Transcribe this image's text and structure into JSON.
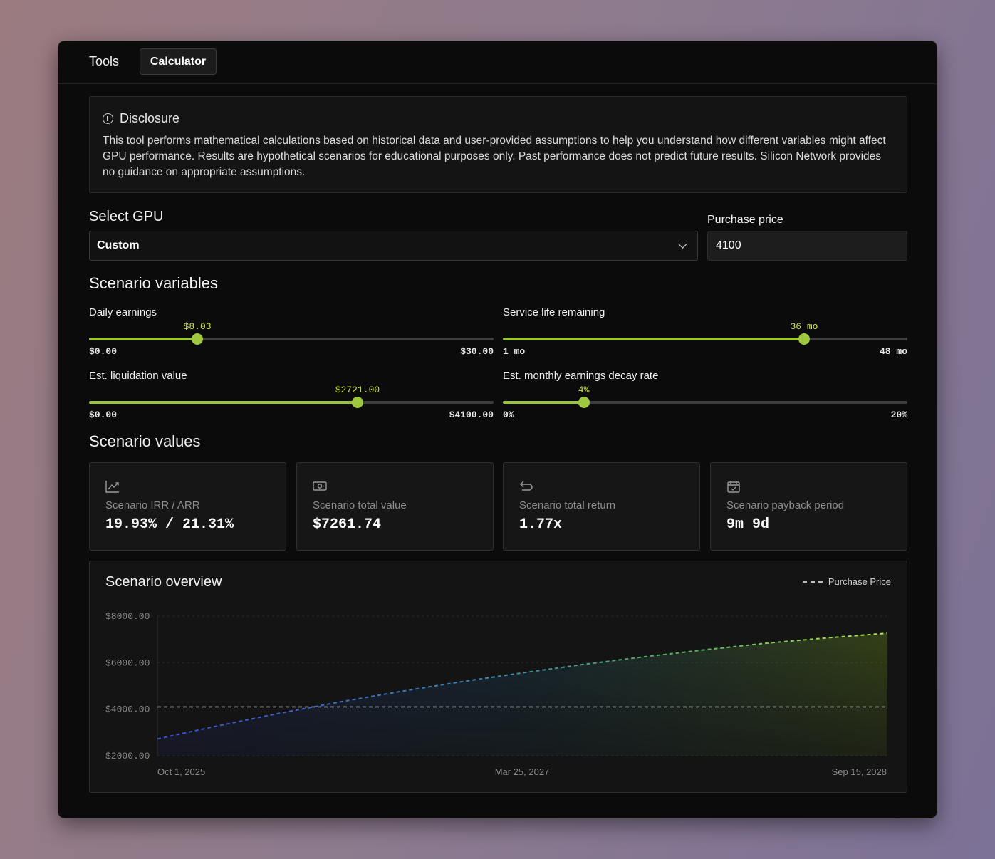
{
  "nav": {
    "tools_label": "Tools",
    "calculator_label": "Calculator"
  },
  "disclosure": {
    "title": "Disclosure",
    "text": "This tool performs mathematical calculations based on historical data and user-provided assumptions to help you understand how different variables might affect GPU performance. Results are hypothetical scenarios for educational purposes only. Past performance does not predict future results. Silicon Network provides no guidance on appropriate assumptions."
  },
  "gpu": {
    "label": "Select GPU",
    "selected": "Custom"
  },
  "purchase": {
    "label": "Purchase price",
    "value": "4100"
  },
  "variables": {
    "title": "Scenario variables",
    "sliders": [
      {
        "label": "Daily earnings",
        "value_text": "$8.03",
        "min_text": "$0.00",
        "max_text": "$30.00",
        "fraction": 0.2677
      },
      {
        "label": "Service life remaining",
        "value_text": "36 mo",
        "min_text": "1 mo",
        "max_text": "48 mo",
        "fraction": 0.7447
      },
      {
        "label": "Est. liquidation value",
        "value_text": "$2721.00",
        "min_text": "$0.00",
        "max_text": "$4100.00",
        "fraction": 0.6637
      },
      {
        "label": "Est. monthly earnings decay rate",
        "value_text": "4%",
        "min_text": "0%",
        "max_text": "20%",
        "fraction": 0.2
      }
    ]
  },
  "values": {
    "title": "Scenario values",
    "cards": [
      {
        "label": "Scenario IRR / ARR",
        "value": "19.93% / 21.31%",
        "icon": "trend-chart-icon"
      },
      {
        "label": "Scenario total value",
        "value": "$7261.74",
        "icon": "cash-icon"
      },
      {
        "label": "Scenario total return",
        "value": "1.77x",
        "icon": "return-arrow-icon"
      },
      {
        "label": "Scenario payback period",
        "value": "9m 9d",
        "icon": "calendar-check-icon"
      }
    ]
  },
  "overview": {
    "title": "Scenario overview",
    "legend_label": "Purchase Price"
  },
  "colors": {
    "accent": "#9ec93e",
    "accent_text": "#c8e645",
    "line_start": "#3a4fd8",
    "line_end": "#b6e84a"
  },
  "chart_data": {
    "type": "area",
    "title": "Scenario overview",
    "xlabel": "",
    "ylabel": "",
    "x_ticks": [
      "Oct 1, 2025",
      "Mar 25, 2027",
      "Sep 15, 2028"
    ],
    "y_ticks": [
      "$2000.00",
      "$4000.00",
      "$6000.00",
      "$8000.00"
    ],
    "ylim": [
      2000,
      8000
    ],
    "months": [
      0,
      3,
      6,
      9,
      12,
      15,
      18,
      21,
      24,
      27,
      30,
      33,
      36
    ],
    "series": [
      {
        "name": "Scenario total value",
        "values": [
          2721,
          3290,
          3820,
          4310,
          4760,
          5180,
          5560,
          5920,
          6250,
          6550,
          6830,
          7060,
          7262
        ]
      },
      {
        "name": "Purchase Price",
        "values": [
          4100,
          4100,
          4100,
          4100,
          4100,
          4100,
          4100,
          4100,
          4100,
          4100,
          4100,
          4100,
          4100
        ]
      }
    ],
    "grid": true,
    "legend": "top-right"
  }
}
